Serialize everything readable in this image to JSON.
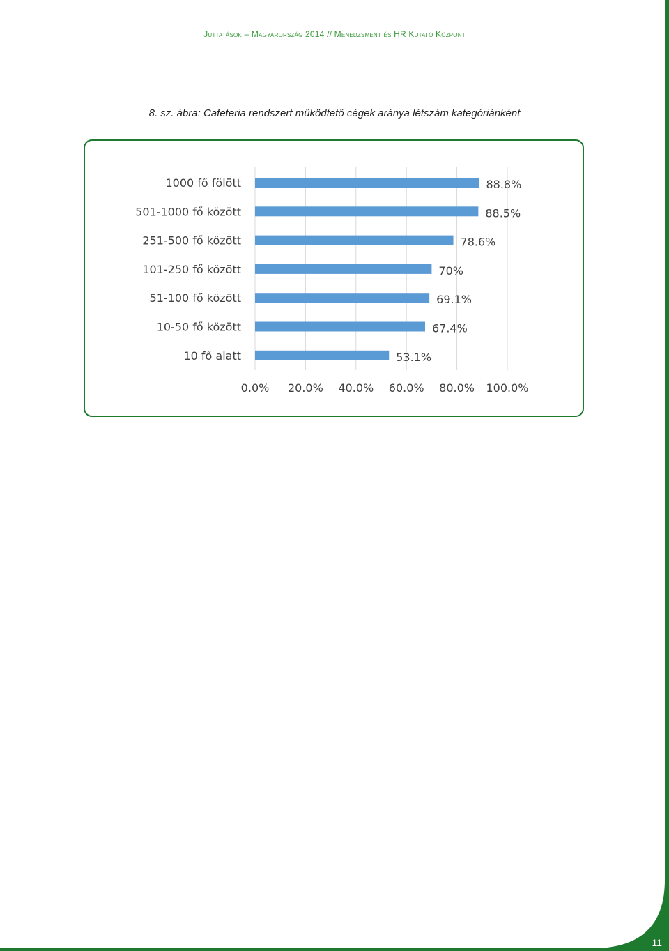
{
  "header": {
    "text": "Juttatások – Magyarország 2014 // Menedzsment és HR Kutató Központ"
  },
  "caption": "8. sz. ábra: Cafeteria rendszert működtető cégek aránya létszám kategóriánként",
  "page_number": "11",
  "colors": {
    "bar": "#5b9bd5",
    "frame": "#1e7a2e",
    "header": "#3a9a3a",
    "grid": "#d9d9d9"
  },
  "chart_data": {
    "type": "bar",
    "orientation": "horizontal",
    "categories": [
      "1000 fő fölött",
      "501-1000 fő között",
      "251-500 fő között",
      "101-250 fő között",
      "51-100 fő között",
      "10-50 fő között",
      "10 fő alatt"
    ],
    "values": [
      88.8,
      88.5,
      78.6,
      70,
      69.1,
      67.4,
      53.1
    ],
    "value_labels": [
      "88.8%",
      "88.5%",
      "78.6%",
      "70%",
      "69.1%",
      "67.4%",
      "53.1%"
    ],
    "xlim": [
      0,
      100
    ],
    "x_ticks": [
      "0.0%",
      "20.0%",
      "40.0%",
      "60.0%",
      "80.0%",
      "100.0%"
    ],
    "x_tick_values": [
      0,
      20,
      40,
      60,
      80,
      100
    ],
    "grid": true,
    "legend": false
  }
}
